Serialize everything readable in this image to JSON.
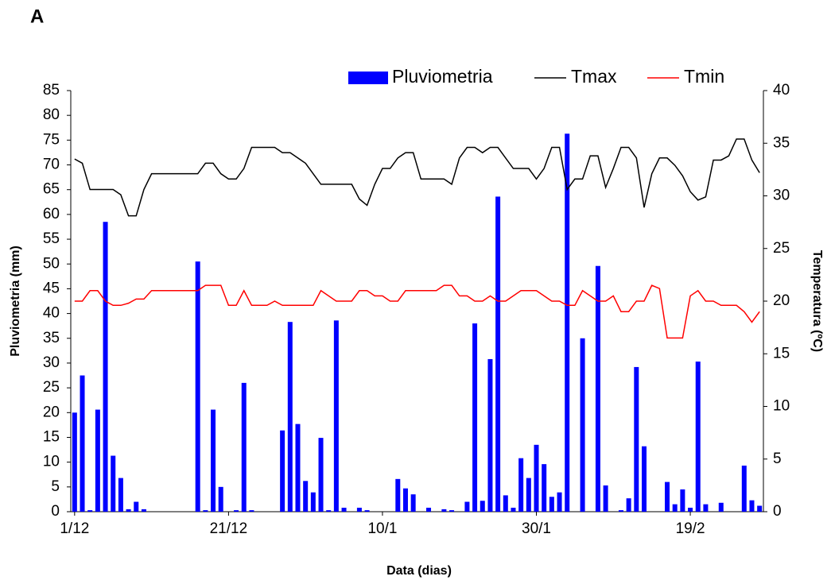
{
  "chart_data": {
    "type": "bar",
    "title": "A",
    "x_label": "Data (dias)",
    "y_label": "Pluviometria (mm)",
    "y2_label": "Temperatura (ºC)",
    "categories": [
      "1/12",
      null,
      null,
      null,
      null,
      null,
      null,
      null,
      null,
      null,
      null,
      null,
      null,
      null,
      null,
      null,
      null,
      null,
      null,
      null,
      "21/12",
      null,
      null,
      null,
      null,
      null,
      null,
      null,
      null,
      null,
      null,
      null,
      null,
      null,
      null,
      null,
      null,
      null,
      null,
      null,
      "10/1",
      null,
      null,
      null,
      null,
      null,
      null,
      null,
      null,
      null,
      null,
      null,
      null,
      null,
      null,
      null,
      null,
      null,
      null,
      null,
      "30/1",
      null,
      null,
      null,
      null,
      null,
      null,
      null,
      null,
      null,
      null,
      null,
      null,
      null,
      null,
      null,
      null,
      null,
      null,
      null,
      "19/2",
      null,
      null,
      null,
      null,
      null,
      null,
      null,
      null,
      null
    ],
    "series": [
      {
        "name": "Pluviometria",
        "type": "bar",
        "color": "#0000ff",
        "values": [
          20,
          27.5,
          0.3,
          20.6,
          58.5,
          11.3,
          6.8,
          0.5,
          2,
          0.5,
          0,
          0,
          0,
          0,
          0,
          0,
          50.5,
          0.3,
          20.6,
          5,
          0,
          0.3,
          26,
          0.3,
          0,
          0,
          0,
          16.4,
          38.3,
          17.7,
          6.2,
          3.9,
          14.9,
          0.3,
          38.6,
          0.8,
          0,
          0.8,
          0.3,
          0,
          0,
          0,
          6.6,
          4.7,
          3.5,
          0,
          0.8,
          0,
          0.5,
          0.3,
          0,
          2,
          38,
          2.2,
          30.8,
          63.6,
          3.3,
          0.8,
          10.8,
          6.8,
          13.5,
          9.6,
          3,
          3.9,
          76.3,
          0,
          35,
          0,
          49.6,
          5.3,
          0,
          0.3,
          2.7,
          29.2,
          13.2,
          0,
          0,
          6,
          1.5,
          4.5,
          0.8,
          30.3,
          1.5,
          0,
          1.8,
          0,
          0,
          9.3,
          2.3,
          1.2
        ]
      },
      {
        "name": "Tmax",
        "type": "line",
        "axis": "y2",
        "color": "#000000",
        "values": [
          33.5,
          33.1,
          30.6,
          30.6,
          30.6,
          30.6,
          30.1,
          28.1,
          28.1,
          30.6,
          32.1,
          32.1,
          32.1,
          32.1,
          32.1,
          32.1,
          32.1,
          33.1,
          33.1,
          32.1,
          31.6,
          31.6,
          32.6,
          34.6,
          34.6,
          34.6,
          34.6,
          34.1,
          34.1,
          33.6,
          33.1,
          32.1,
          31.1,
          31.1,
          31.1,
          31.1,
          31.1,
          29.7,
          29.1,
          31.1,
          32.6,
          32.6,
          33.6,
          34.1,
          34.1,
          31.6,
          31.6,
          31.6,
          31.6,
          31.1,
          33.6,
          34.6,
          34.6,
          34.1,
          34.6,
          34.6,
          33.6,
          32.6,
          32.6,
          32.6,
          31.6,
          32.6,
          34.6,
          34.6,
          30.6,
          31.6,
          31.6,
          33.8,
          33.8,
          30.8,
          32.6,
          34.6,
          34.6,
          33.6,
          28.9,
          32.1,
          33.6,
          33.6,
          32.9,
          31.9,
          30.4,
          29.6,
          29.9,
          33.4,
          33.4,
          33.8,
          35.4,
          35.4,
          33.4,
          32.2
        ]
      },
      {
        "name": "Tmin",
        "type": "line",
        "axis": "y2",
        "color": "#ff0000",
        "values": [
          20,
          20,
          21,
          21,
          20,
          19.6,
          19.6,
          19.8,
          20.2,
          20.2,
          21,
          21,
          21,
          21,
          21,
          21,
          21,
          21.5,
          21.5,
          21.5,
          19.6,
          19.6,
          21,
          19.6,
          19.6,
          19.6,
          20,
          19.6,
          19.6,
          19.6,
          19.6,
          19.6,
          21,
          20.5,
          20,
          20,
          20,
          21,
          21,
          20.5,
          20.5,
          20,
          20,
          21,
          21,
          21,
          21,
          21,
          21.5,
          21.5,
          20.5,
          20.5,
          20,
          20,
          20.5,
          20,
          20,
          20.5,
          21,
          21,
          21,
          20.5,
          20,
          20,
          19.6,
          19.6,
          21,
          20.5,
          20,
          20,
          20.5,
          19,
          19,
          20,
          20,
          21.5,
          21.2,
          16.5,
          16.5,
          16.5,
          20.5,
          21,
          20,
          20,
          19.6,
          19.6,
          19.6,
          19,
          18,
          19
        ]
      }
    ],
    "ylim": [
      0,
      85
    ],
    "yticks": [
      0,
      5,
      10,
      15,
      20,
      25,
      30,
      35,
      40,
      45,
      50,
      55,
      60,
      65,
      70,
      75,
      80,
      85
    ],
    "y2lim": [
      0,
      40
    ],
    "y2ticks": [
      0,
      5,
      10,
      15,
      20,
      25,
      30,
      35,
      40
    ],
    "grid": false,
    "legend": "top"
  }
}
